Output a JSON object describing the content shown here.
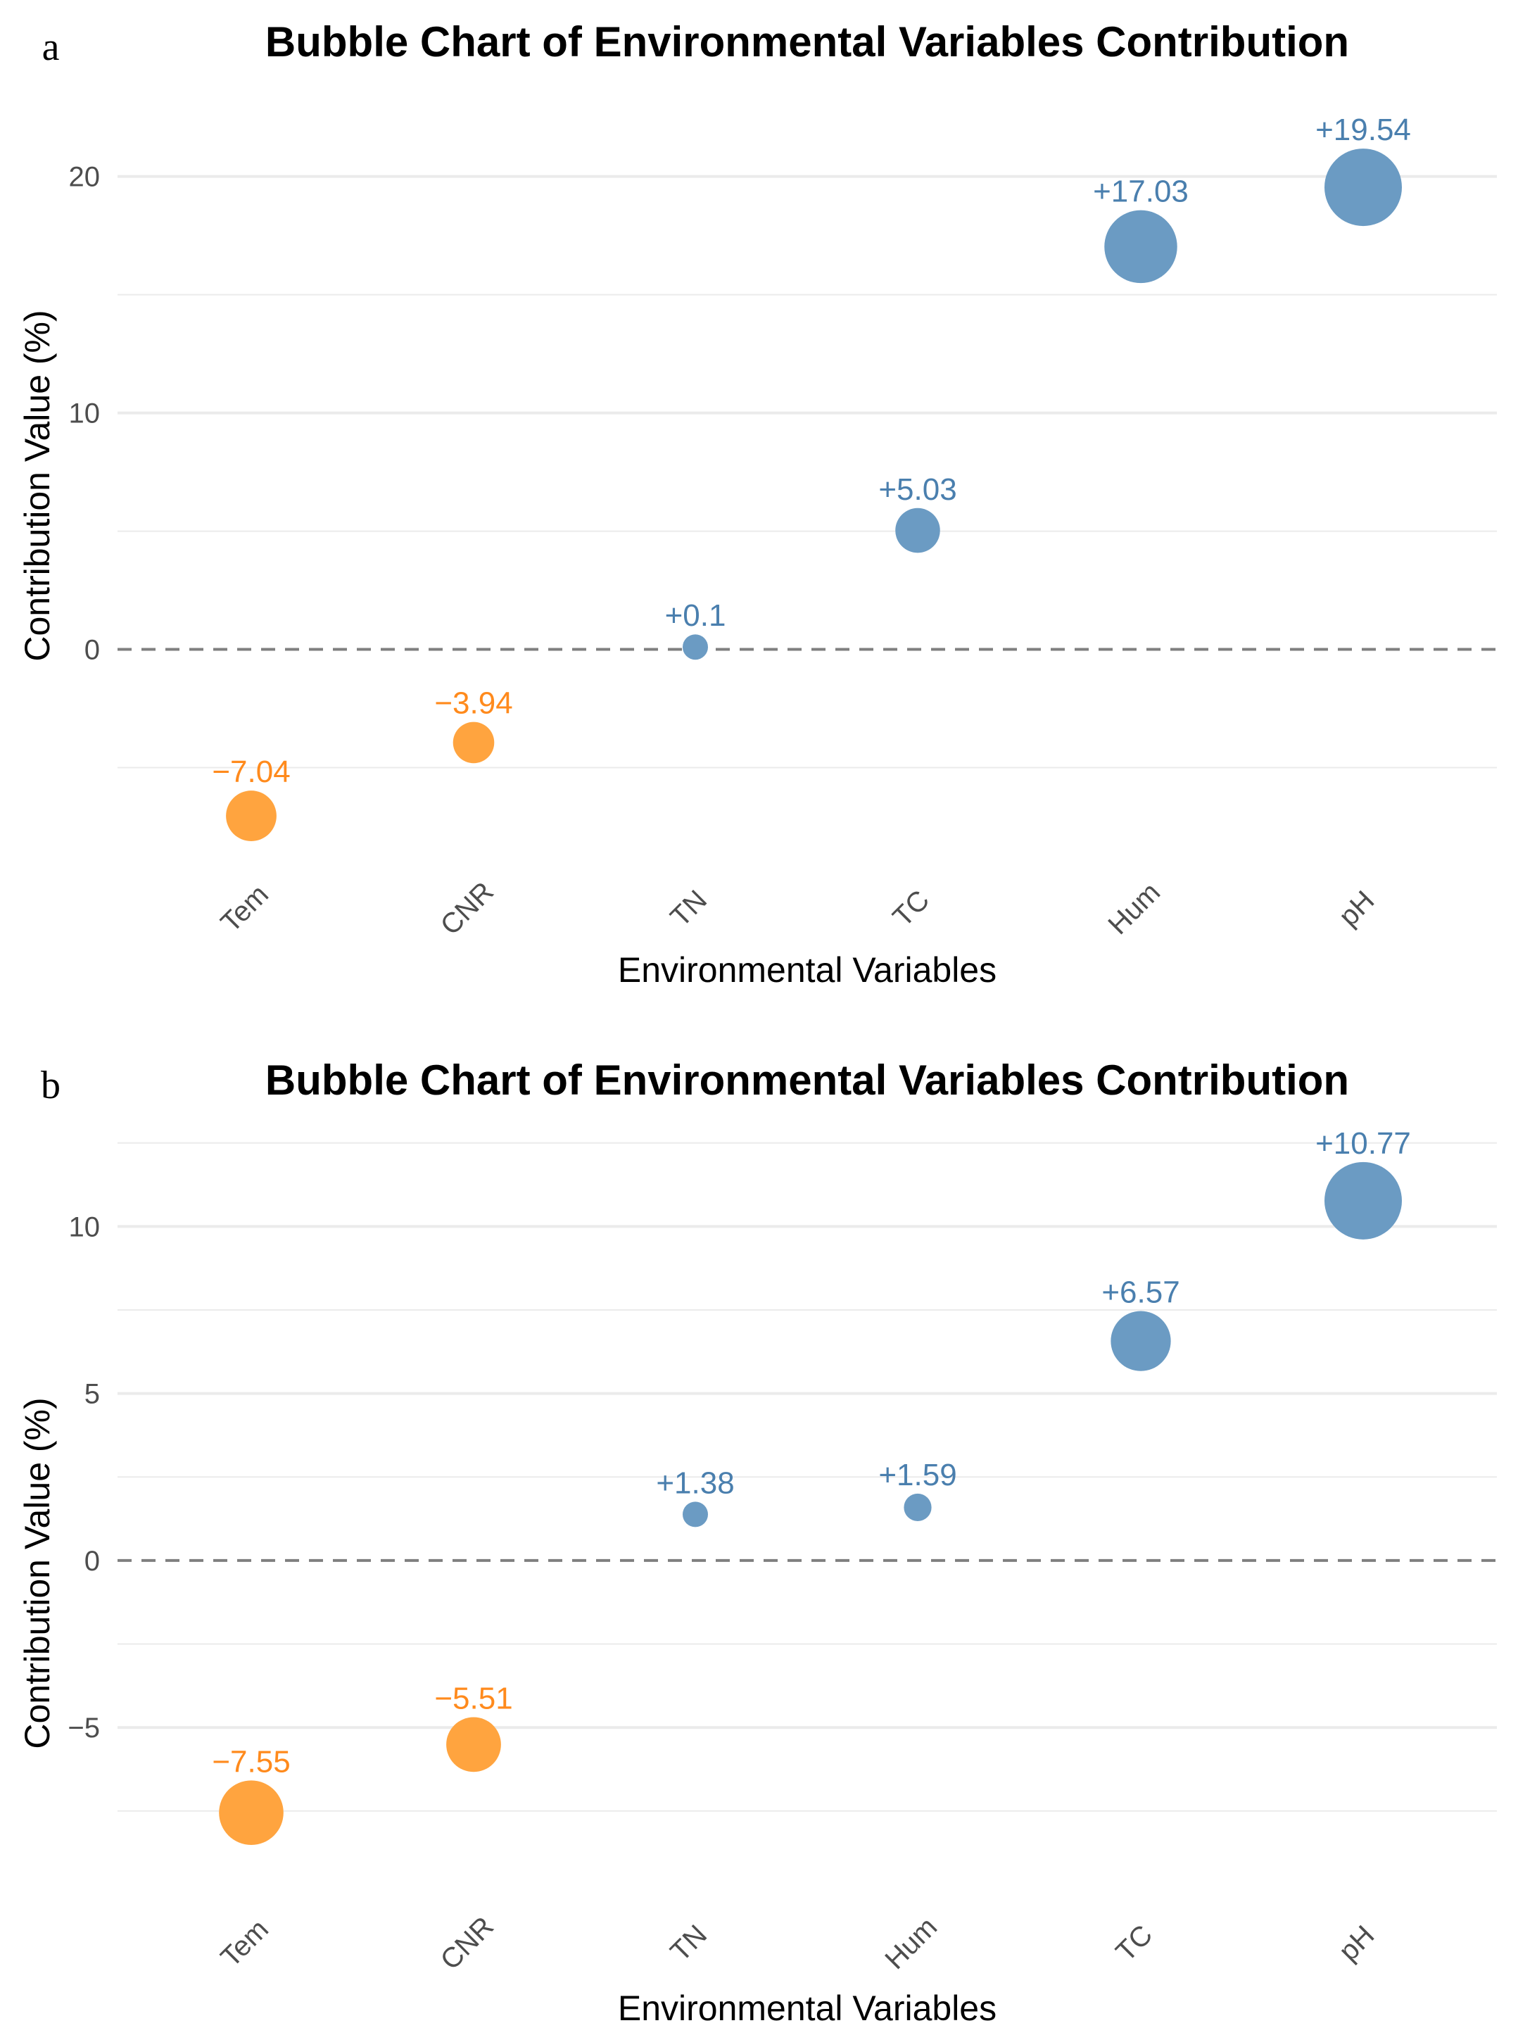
{
  "colors": {
    "positive": "#6b9bc3",
    "negative": "#ffa43f",
    "positive_label": "#4a7fae",
    "negative_label": "#ff8a1c",
    "grid": "#ebebeb",
    "zero_line": "#7f7f7f"
  },
  "chart_data": [
    {
      "panel_label": "a",
      "type": "scatter",
      "title": "Bubble Chart of Environmental Variables Contribution",
      "xlabel": "Environmental Variables",
      "ylabel": "Contribution Value (%)",
      "categories": [
        "Tem",
        "CNR",
        "TN",
        "TC",
        "Hum",
        "pH"
      ],
      "values": [
        -7.04,
        -3.94,
        0.1,
        5.03,
        17.03,
        19.54
      ],
      "labels": [
        "−7.04",
        "−3.94",
        "+0.1",
        "+5.03",
        "+17.03",
        "+19.54"
      ],
      "yticks": [
        0,
        10,
        20
      ],
      "ytick_labels": [
        "0",
        "10",
        "20"
      ],
      "minor_grid": [
        -5,
        5,
        15
      ],
      "ylim": [
        -9.3,
        22.4
      ],
      "reference_line": 0,
      "grid": true
    },
    {
      "panel_label": "b",
      "type": "scatter",
      "title": "Bubble Chart of Environmental Variables Contribution",
      "xlabel": "Environmental Variables",
      "ylabel": "Contribution Value (%)",
      "categories": [
        "Tem",
        "CNR",
        "TN",
        "Hum",
        "TC",
        "pH"
      ],
      "values": [
        -7.55,
        -5.51,
        1.38,
        1.59,
        6.57,
        10.77
      ],
      "labels": [
        "−7.55",
        "−5.51",
        "+1.38",
        "+1.59",
        "+6.57",
        "+10.77"
      ],
      "yticks": [
        -5,
        0,
        5,
        10
      ],
      "ytick_labels": [
        "−5",
        "0",
        "5",
        "10"
      ],
      "minor_grid": [
        -7.5,
        -2.5,
        2.5,
        7.5,
        12.5
      ],
      "ylim": [
        -8.6,
        13.0
      ],
      "reference_line": 0,
      "grid": true
    }
  ]
}
